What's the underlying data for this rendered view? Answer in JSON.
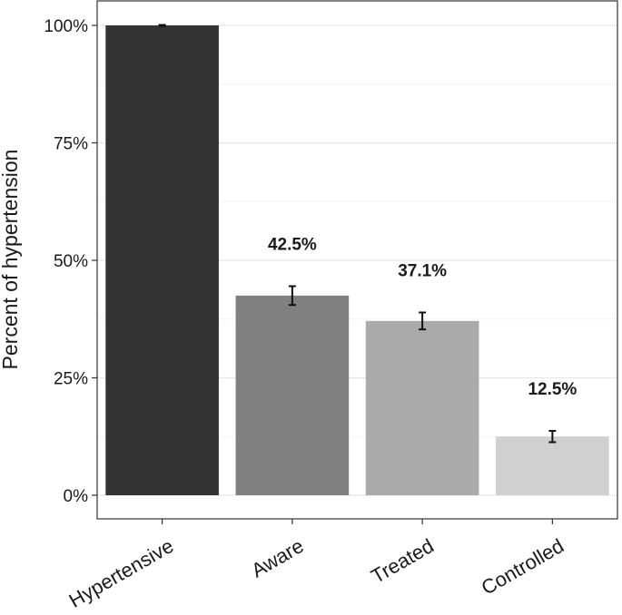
{
  "chart_data": {
    "type": "bar",
    "title": "",
    "xlabel": "",
    "ylabel": "Percent of hypertension",
    "categories": [
      "Hypertensive",
      "Aware",
      "Treated",
      "Controlled"
    ],
    "values": [
      100,
      42.5,
      37.1,
      12.5
    ],
    "data_labels": [
      "",
      "42.5%",
      "37.1%",
      "12.5%"
    ],
    "error_bars": [
      {
        "low": 99.9,
        "high": 100.1
      },
      {
        "low": 40.5,
        "high": 44.5
      },
      {
        "low": 35.3,
        "high": 38.9
      },
      {
        "low": 11.3,
        "high": 13.7
      }
    ],
    "bar_colors": [
      "#333333",
      "#808080",
      "#aaaaaa",
      "#d0d0d0"
    ],
    "yticks": [
      0,
      25,
      50,
      75,
      100
    ],
    "ytick_labels": [
      "0%",
      "25%",
      "50%",
      "75%",
      "100%"
    ],
    "ylim": [
      0,
      100
    ],
    "grid": true,
    "legend": "none"
  }
}
